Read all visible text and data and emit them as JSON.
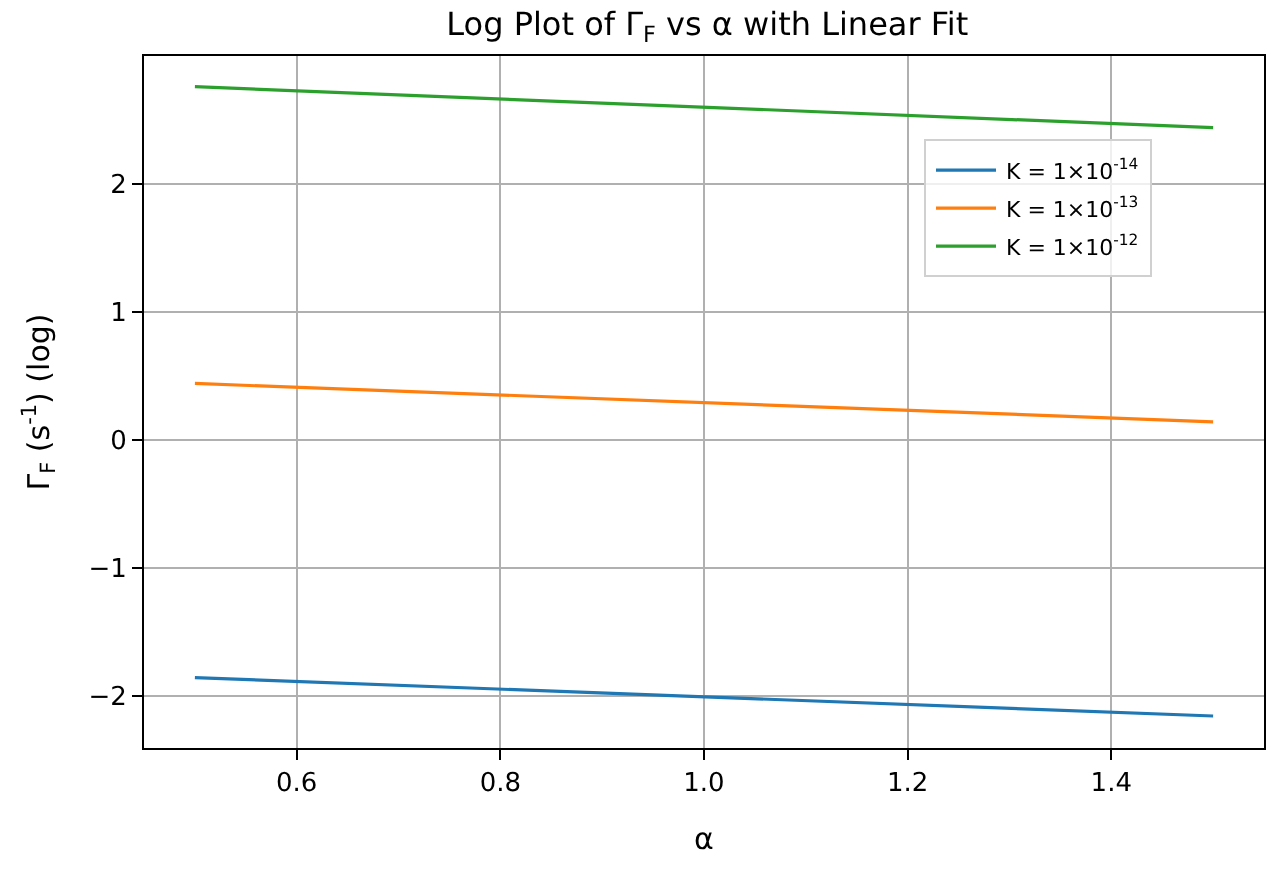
{
  "chart_data": {
    "type": "line",
    "title": "Log Plot of Γ$_{F}$ vs α with Linear Fit",
    "xlabel": "α",
    "ylabel": "Γ$_{F}$ (s$^{-1}$) (log)",
    "x": [
      0.5,
      1.5
    ],
    "series": [
      {
        "name": "K = 1×10$^{-14}$",
        "color": "#1f77b4",
        "values": [
          -1.86,
          -2.16
        ]
      },
      {
        "name": "K = 1×10$^{-13}$",
        "color": "#ff7f0e",
        "values": [
          0.44,
          0.14
        ]
      },
      {
        "name": "K = 1×10$^{-12}$",
        "color": "#2ca02c",
        "values": [
          2.76,
          2.44
        ]
      }
    ],
    "xlim": [
      0.45,
      1.55
    ],
    "xticks": [
      0.6,
      0.8,
      {
        "value": 1,
        "label": "1.0"
      },
      1.2,
      1.4
    ],
    "ylim": [
      -2.41,
      3.0
    ],
    "yticks": [
      -2,
      -1,
      0,
      1,
      2
    ],
    "grid": true,
    "legend": "top right",
    "marker": "none",
    "line_style": "solid"
  }
}
